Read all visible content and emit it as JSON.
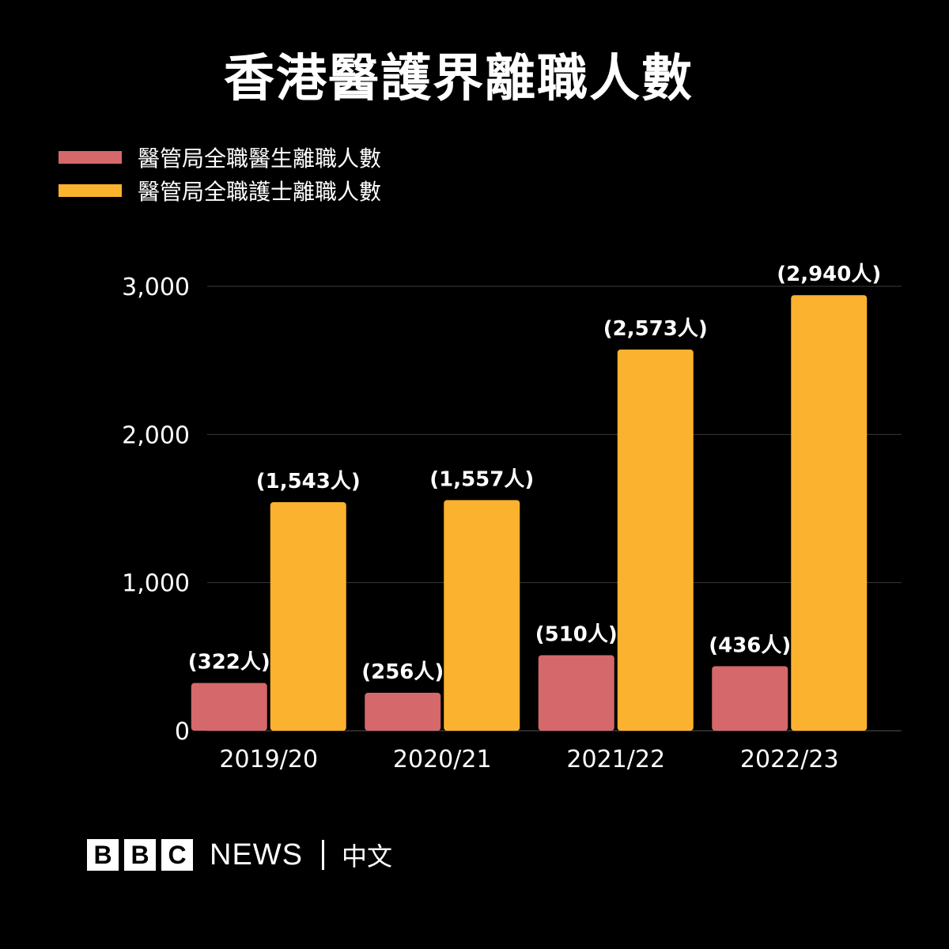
{
  "title": "香港醫護界離職人數",
  "chart_data": {
    "type": "bar",
    "categories": [
      "2019/20",
      "2020/21",
      "2021/22",
      "2022/23"
    ],
    "series": [
      {
        "name": "醫管局全職醫生離職人數",
        "color": "#d4686a",
        "values": [
          322,
          256,
          510,
          436
        ],
        "labels": [
          "(322人)",
          "(256人)",
          "(510人)",
          "(436人)"
        ]
      },
      {
        "name": "醫管局全職護士離職人數",
        "color": "#fbb22e",
        "values": [
          1543,
          1557,
          2573,
          2940
        ],
        "labels": [
          "(1,543人)",
          "(1,557人)",
          "(2,573人)",
          "(2,940人)"
        ]
      }
    ],
    "yticks": [
      0,
      1000,
      2000,
      3000
    ],
    "ytick_labels": [
      "0",
      "1,000",
      "2,000",
      "3,000"
    ],
    "ylim": [
      0,
      3000
    ],
    "grid": true,
    "legend_position": "top-left"
  },
  "footer": {
    "brand_letters": [
      "B",
      "B",
      "C"
    ],
    "news": "NEWS",
    "language": "中文"
  }
}
